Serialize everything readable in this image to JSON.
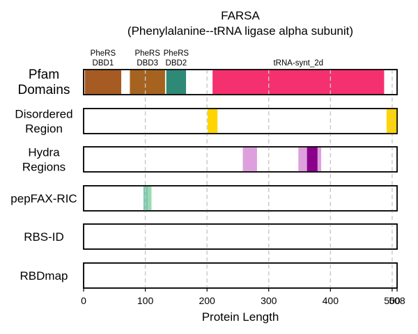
{
  "chart_data": {
    "type": "bar",
    "title_line1": "FARSA",
    "title_line2": "(Phenylalanine--tRNA ligase alpha subunit)",
    "xlabel": "Protein Length",
    "xlim": [
      0,
      508
    ],
    "xticks": [
      0,
      100,
      200,
      300,
      400,
      500,
      508
    ],
    "tick_labels": [
      "0",
      "100",
      "200",
      "300",
      "400",
      "500",
      "508"
    ],
    "grid": true,
    "rows": [
      {
        "key": "pfam",
        "label_lines": [
          "Pfam",
          "Domains"
        ],
        "big": true,
        "segments": [
          {
            "start": 2,
            "end": 61,
            "color": "#a65b22",
            "label_lines": [
              "PheRS",
              "DBD1"
            ]
          },
          {
            "start": 75,
            "end": 132,
            "color": "#a5631f",
            "label_lines": [
              "PheRS",
              "DBD3"
            ]
          },
          {
            "start": 134,
            "end": 166,
            "color": "#2e8a77",
            "label_lines": [
              "PheRS",
              "DBD2"
            ]
          },
          {
            "start": 209,
            "end": 487,
            "color": "#f5306f",
            "label_lines": [
              "tRNA-synt_2d"
            ]
          }
        ]
      },
      {
        "key": "disordered",
        "label_lines": [
          "Disordered",
          "Region"
        ],
        "big": false,
        "segments": [
          {
            "start": 201,
            "end": 217,
            "color": "#ffd400"
          },
          {
            "start": 491,
            "end": 508,
            "color": "#ffd400"
          }
        ]
      },
      {
        "key": "hydra",
        "label_lines": [
          "Hydra",
          "Regions"
        ],
        "big": false,
        "segments": [
          {
            "start": 258,
            "end": 281,
            "color": "#dda0dd"
          },
          {
            "start": 348,
            "end": 385,
            "color": "#dda0dd"
          },
          {
            "start": 362,
            "end": 379,
            "color": "#8b008b"
          }
        ]
      },
      {
        "key": "pepfax",
        "label_lines": [
          "pepFAX-RIC"
        ],
        "big": false,
        "segments": [
          {
            "start": 97,
            "end": 110,
            "color": "#98dbb0"
          },
          {
            "start": 97,
            "end": 104,
            "color": "#7ec9b0"
          }
        ]
      },
      {
        "key": "rbsid",
        "label_lines": [
          "RBS-ID"
        ],
        "big": false,
        "segments": []
      },
      {
        "key": "rbdmap",
        "label_lines": [
          "RBDmap"
        ],
        "big": false,
        "segments": []
      }
    ]
  }
}
